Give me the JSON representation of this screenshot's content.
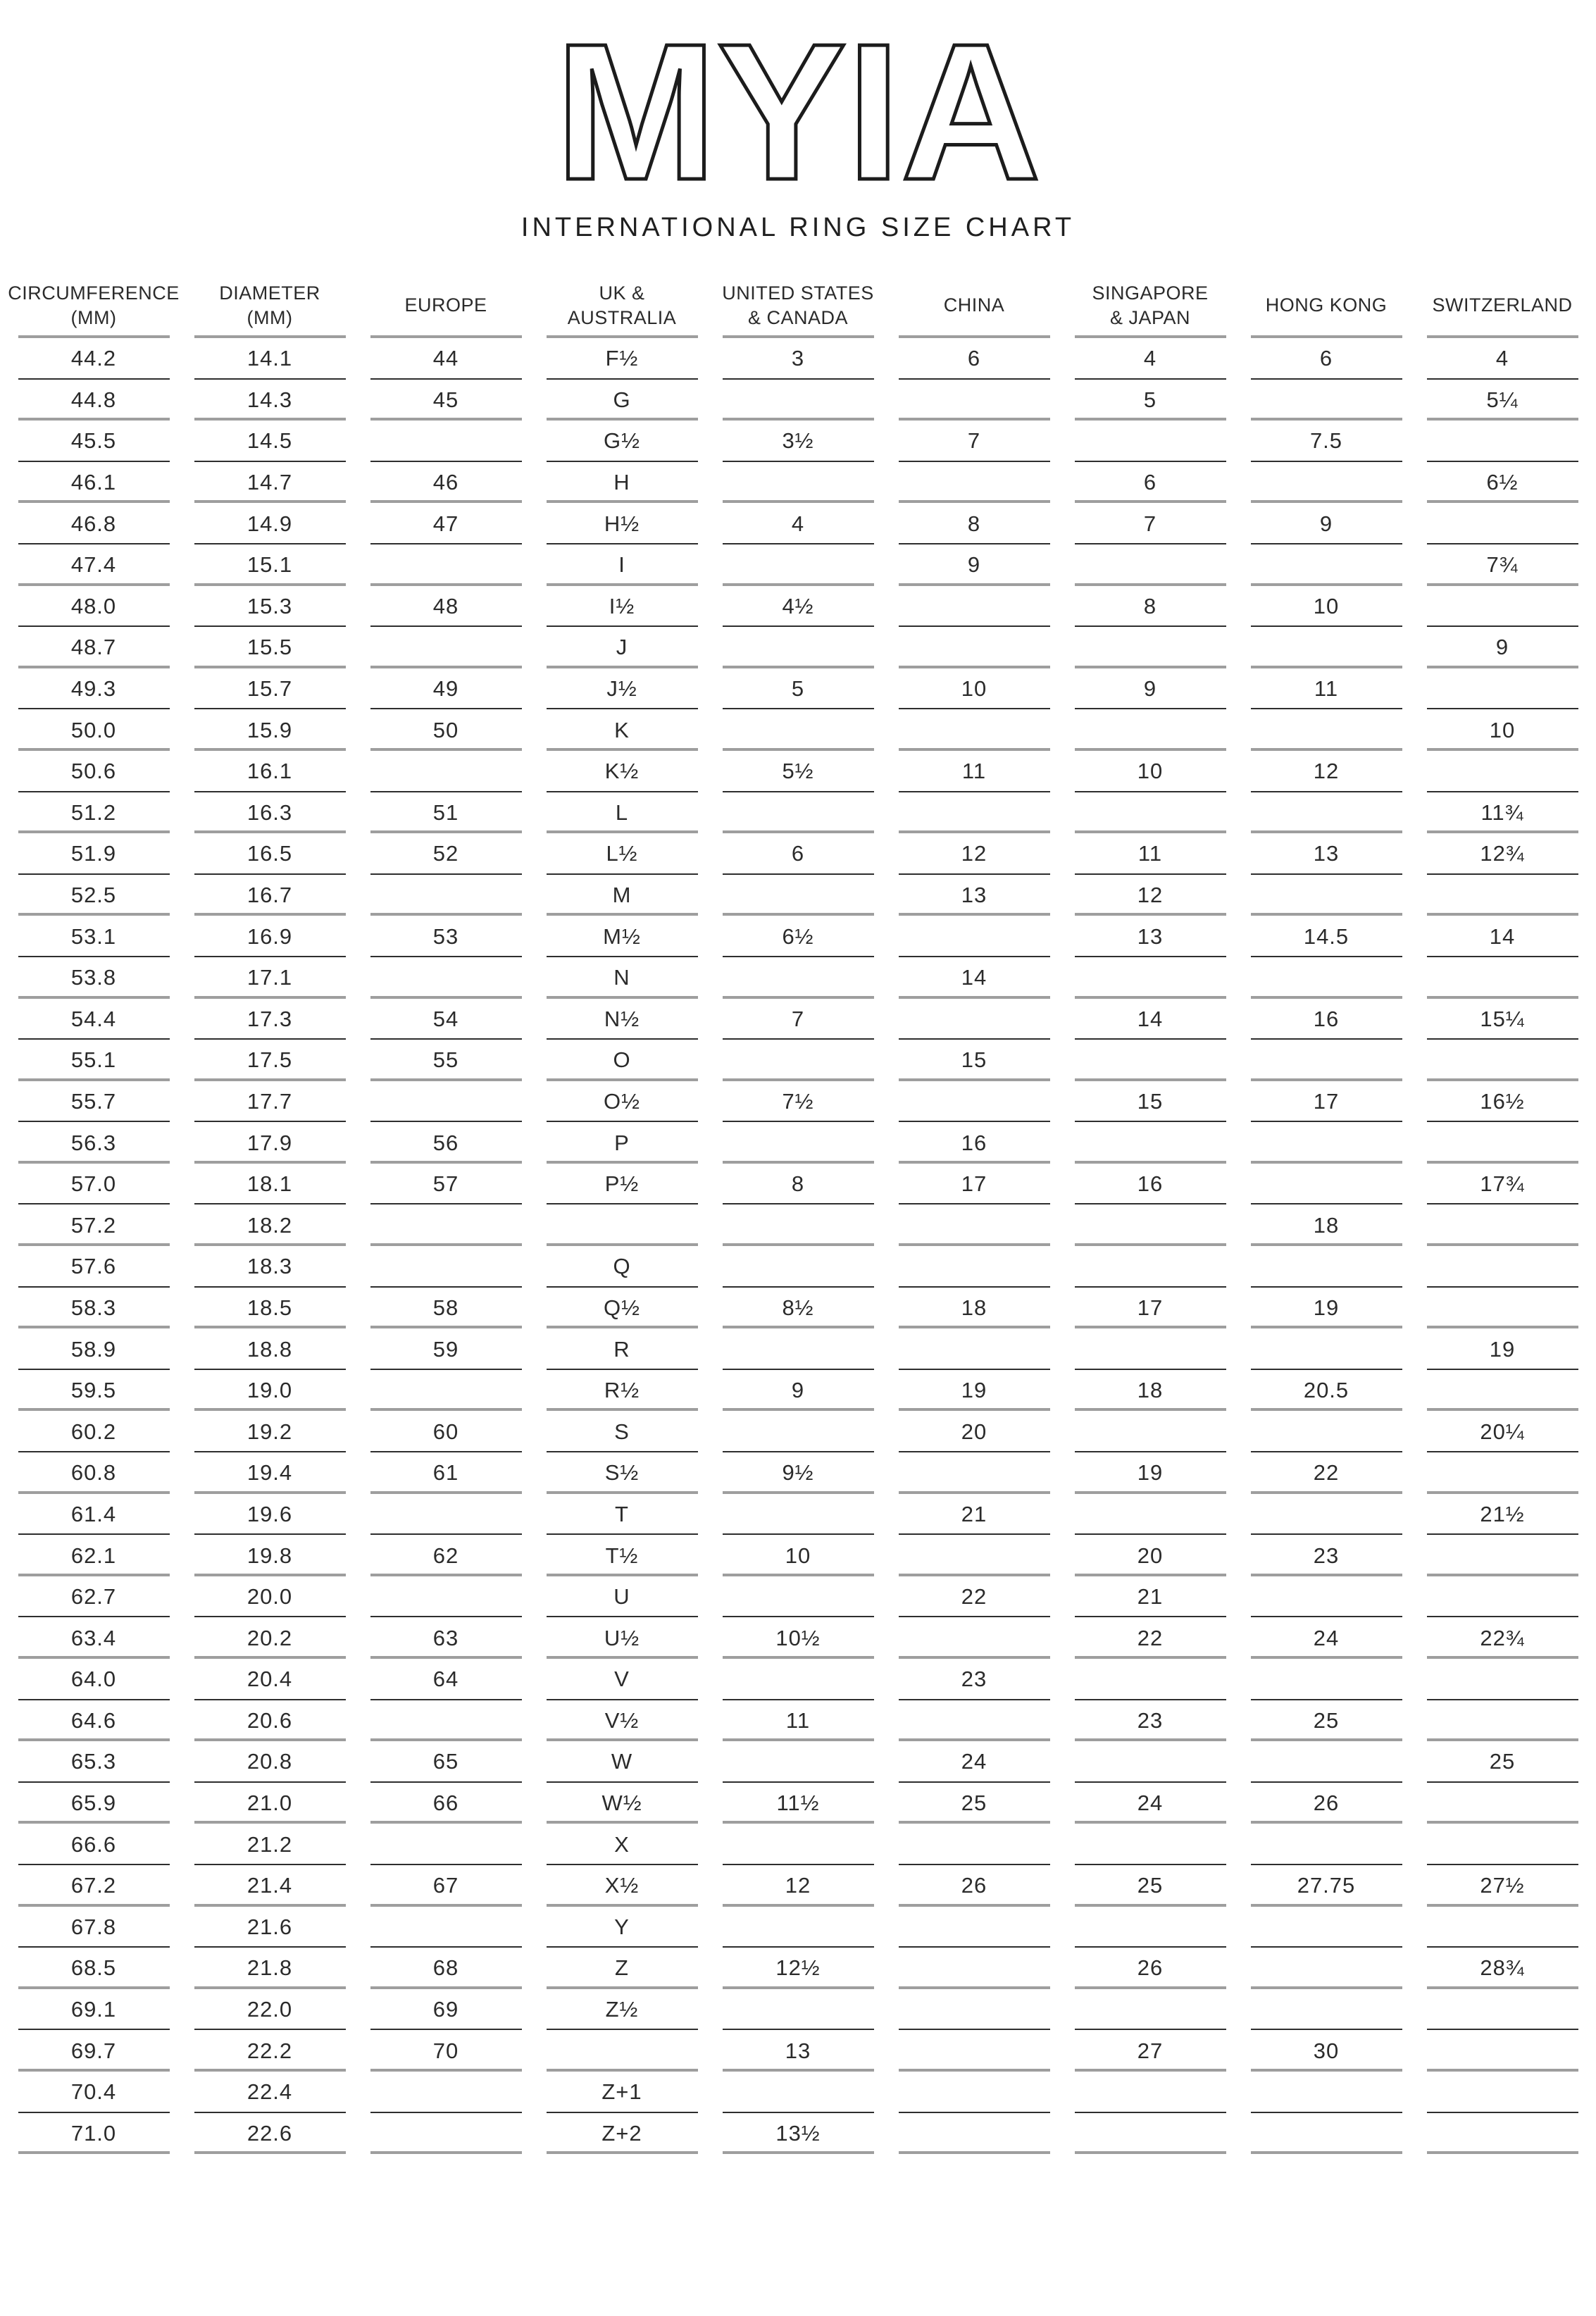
{
  "logo": {
    "text": "MYIA"
  },
  "title": "INTERNATIONAL RING SIZE CHART",
  "colors": {
    "background": "#ffffff",
    "text": "#2b2b2b",
    "rule_dark": "#2e2e2e",
    "rule_gray": "#9e9e9e"
  },
  "chart_data": {
    "type": "table",
    "title": "INTERNATIONAL RING SIZE CHART",
    "columns": [
      "CIRCUMFERENCE (MM)",
      "DIAMETER (MM)",
      "EUROPE",
      "UK & AUSTRALIA",
      "UNITED STATES & CANADA",
      "CHINA",
      "SINGAPORE & JAPAN",
      "HONG KONG",
      "SWITZERLAND"
    ],
    "header_lines": [
      "CIRCUMFERENCE\n(MM)",
      "DIAMETER\n(MM)",
      "EUROPE",
      "UK &\nAUSTRALIA",
      "UNITED STATES\n& CANADA",
      "CHINA",
      "SINGAPORE\n& JAPAN",
      "HONG KONG",
      "SWITZERLAND"
    ],
    "rows": [
      [
        "44.2",
        "14.1",
        "44",
        "F½",
        "3",
        "6",
        "4",
        "6",
        "4"
      ],
      [
        "44.8",
        "14.3",
        "45",
        "G",
        "",
        "",
        "5",
        "",
        "5¼"
      ],
      [
        "45.5",
        "14.5",
        "",
        "G½",
        "3½",
        "7",
        "",
        "7.5",
        ""
      ],
      [
        "46.1",
        "14.7",
        "46",
        "H",
        "",
        "",
        "6",
        "",
        "6½"
      ],
      [
        "46.8",
        "14.9",
        "47",
        "H½",
        "4",
        "8",
        "7",
        "9",
        ""
      ],
      [
        "47.4",
        "15.1",
        "",
        "I",
        "",
        "9",
        "",
        "",
        "7¾"
      ],
      [
        "48.0",
        "15.3",
        "48",
        "I½",
        "4½",
        "",
        "8",
        "10",
        ""
      ],
      [
        "48.7",
        "15.5",
        "",
        "J",
        "",
        "",
        "",
        "",
        "9"
      ],
      [
        "49.3",
        "15.7",
        "49",
        "J½",
        "5",
        "10",
        "9",
        "11",
        ""
      ],
      [
        "50.0",
        "15.9",
        "50",
        "K",
        "",
        "",
        "",
        "",
        "10"
      ],
      [
        "50.6",
        "16.1",
        "",
        "K½",
        "5½",
        "11",
        "10",
        "12",
        ""
      ],
      [
        "51.2",
        "16.3",
        "51",
        "L",
        "",
        "",
        "",
        "",
        "11¾"
      ],
      [
        "51.9",
        "16.5",
        "52",
        "L½",
        "6",
        "12",
        "11",
        "13",
        "12¾"
      ],
      [
        "52.5",
        "16.7",
        "",
        "M",
        "",
        "13",
        "12",
        "",
        ""
      ],
      [
        "53.1",
        "16.9",
        "53",
        "M½",
        "6½",
        "",
        "13",
        "14.5",
        "14"
      ],
      [
        "53.8",
        "17.1",
        "",
        "N",
        "",
        "14",
        "",
        "",
        ""
      ],
      [
        "54.4",
        "17.3",
        "54",
        "N½",
        "7",
        "",
        "14",
        "16",
        "15¼"
      ],
      [
        "55.1",
        "17.5",
        "55",
        "O",
        "",
        "15",
        "",
        "",
        ""
      ],
      [
        "55.7",
        "17.7",
        "",
        "O½",
        "7½",
        "",
        "15",
        "17",
        "16½"
      ],
      [
        "56.3",
        "17.9",
        "56",
        "P",
        "",
        "16",
        "",
        "",
        ""
      ],
      [
        "57.0",
        "18.1",
        "57",
        "P½",
        "8",
        "17",
        "16",
        "",
        "17¾"
      ],
      [
        "57.2",
        "18.2",
        "",
        "",
        "",
        "",
        "",
        "18",
        ""
      ],
      [
        "57.6",
        "18.3",
        "",
        "Q",
        "",
        "",
        "",
        "",
        ""
      ],
      [
        "58.3",
        "18.5",
        "58",
        "Q½",
        "8½",
        "18",
        "17",
        "19",
        ""
      ],
      [
        "58.9",
        "18.8",
        "59",
        "R",
        "",
        "",
        "",
        "",
        "19"
      ],
      [
        "59.5",
        "19.0",
        "",
        "R½",
        "9",
        "19",
        "18",
        "20.5",
        ""
      ],
      [
        "60.2",
        "19.2",
        "60",
        "S",
        "",
        "20",
        "",
        "",
        "20¼"
      ],
      [
        "60.8",
        "19.4",
        "61",
        "S½",
        "9½",
        "",
        "19",
        "22",
        ""
      ],
      [
        "61.4",
        "19.6",
        "",
        "T",
        "",
        "21",
        "",
        "",
        "21½"
      ],
      [
        "62.1",
        "19.8",
        "62",
        "T½",
        "10",
        "",
        "20",
        "23",
        ""
      ],
      [
        "62.7",
        "20.0",
        "",
        "U",
        "",
        "22",
        "21",
        "",
        ""
      ],
      [
        "63.4",
        "20.2",
        "63",
        "U½",
        "10½",
        "",
        "22",
        "24",
        "22¾"
      ],
      [
        "64.0",
        "20.4",
        "64",
        "V",
        "",
        "23",
        "",
        "",
        ""
      ],
      [
        "64.6",
        "20.6",
        "",
        "V½",
        "11",
        "",
        "23",
        "25",
        ""
      ],
      [
        "65.3",
        "20.8",
        "65",
        "W",
        "",
        "24",
        "",
        "",
        "25"
      ],
      [
        "65.9",
        "21.0",
        "66",
        "W½",
        "11½",
        "25",
        "24",
        "26",
        ""
      ],
      [
        "66.6",
        "21.2",
        "",
        "X",
        "",
        "",
        "",
        "",
        ""
      ],
      [
        "67.2",
        "21.4",
        "67",
        "X½",
        "12",
        "26",
        "25",
        "27.75",
        "27½"
      ],
      [
        "67.8",
        "21.6",
        "",
        "Y",
        "",
        "",
        "",
        "",
        ""
      ],
      [
        "68.5",
        "21.8",
        "68",
        "Z",
        "12½",
        "",
        "26",
        "",
        "28¾"
      ],
      [
        "69.1",
        "22.0",
        "69",
        "Z½",
        "",
        "",
        "",
        "",
        ""
      ],
      [
        "69.7",
        "22.2",
        "70",
        "",
        "13",
        "",
        "27",
        "30",
        ""
      ],
      [
        "70.4",
        "22.4",
        "",
        "Z+1",
        "",
        "",
        "",
        "",
        ""
      ],
      [
        "71.0",
        "22.6",
        "",
        "Z+2",
        "13½",
        "",
        "",
        "",
        ""
      ]
    ]
  }
}
